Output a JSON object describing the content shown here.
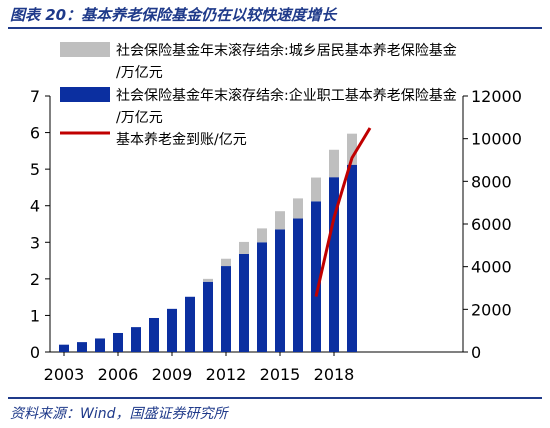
{
  "figure": {
    "title": "图表 20：基本养老保险基金仍在以较快速度增长",
    "source": "资料来源：Wind，国盛证券研究所"
  },
  "chart_data": {
    "type": "bar",
    "categories": [
      2003,
      2004,
      2005,
      2006,
      2007,
      2008,
      2009,
      2010,
      2011,
      2012,
      2013,
      2014,
      2015,
      2016,
      2017,
      2018,
      2019
    ],
    "x_tick_labels": [
      "2003",
      "2006",
      "2009",
      "2012",
      "2015",
      "2018"
    ],
    "series": [
      {
        "name": "社会保险基金年末滚存结余:城乡居民基本养老保险基金/万亿元",
        "kind": "bar",
        "stacked_on": 1,
        "axis": "left",
        "color": "#bfbfbf",
        "values": [
          0,
          0,
          0,
          0,
          0,
          0,
          0,
          0,
          0.08,
          0.2,
          0.33,
          0.38,
          0.5,
          0.55,
          0.65,
          0.75,
          0.85
        ]
      },
      {
        "name": "社会保险基金年末滚存结余:企业职工基本养老保险基金/万亿元",
        "kind": "bar",
        "axis": "left",
        "color": "#0b2fa0",
        "values": [
          0.2,
          0.27,
          0.37,
          0.52,
          0.68,
          0.93,
          1.18,
          1.51,
          1.92,
          2.35,
          2.68,
          3.0,
          3.35,
          3.65,
          4.12,
          4.78,
          5.12
        ]
      },
      {
        "name": "基本养老金到账/亿元",
        "kind": "line",
        "axis": "right",
        "color": "#c00000",
        "x": [
          2017,
          2018,
          2019,
          2020
        ],
        "values": [
          2600,
          6300,
          9100,
          10500
        ]
      }
    ],
    "y_left": {
      "min": 0,
      "max": 7,
      "ticks": [
        0,
        1,
        2,
        3,
        4,
        5,
        6,
        7
      ]
    },
    "y_right": {
      "min": 0,
      "max": 12000,
      "ticks": [
        0,
        2000,
        4000,
        6000,
        8000,
        10000,
        12000
      ]
    },
    "legend_position": "top-left",
    "grid": false
  }
}
